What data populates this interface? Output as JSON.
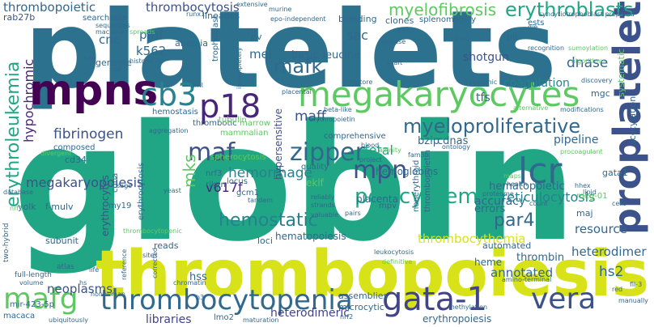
{
  "words": {
    "globin": "globin",
    "platelets": "platelets",
    "thrombopoiesis": "thrombopoiesis",
    "megakaryocytes": "megakaryocytes",
    "proplatelet": "proplatelet",
    "thrombocytopenia": "thrombocytopenia",
    "gata_1": "gata-1",
    "mpns": "mpns",
    "p18": "p18",
    "cb3": "cb3",
    "lcr": "lcr",
    "mafg": "mafg",
    "vera": "vera",
    "myeloproliferative": "myeloproliferative",
    "erythroblasts": "erythroblasts",
    "mafk": "mafk",
    "maf": "maf",
    "erythroleukemia": "erythroleukemia",
    "polycythemia": "polycythemia",
    "zipper": "zipper",
    "mpn": "mpn",
    "hemostatic": "hemostatic",
    "par4": "par4",
    "myelofibrosis": "myelofibrosis",
    "thrombocytosis": "thrombocytosis",
    "thrombopoietic": "thrombopoietic",
    "reticulocytosis": "reticulocytosis",
    "thrombocythemia": "thrombocythemia",
    "hemorrhage": "hemorrhage",
    "hypochromic": "hypochromic",
    "fibrinogen": "fibrinogen",
    "mks": "mks",
    "v617f": "v617f",
    "megakaryopoiesis": "megakaryopoiesis",
    "dnase": "dnase",
    "coagulation": "coagulation",
    "hs2": "hs2",
    "heterodimeric": "heterodimeric",
    "heterodimer": "heterodimer",
    "neoplasms": "neoplasms",
    "libraries": "libraries",
    "hss": "hss",
    "resource": "resource",
    "shotgun": "shotgun",
    "pipeline": "pipeline",
    "fetal": "fetal",
    "accuracy": "accuracy",
    "hematopoietic": "hematopoietic",
    "annotated": "annotated",
    "erythrocytes": "erythrocytes",
    "hemoglobins": "hemoglobins",
    "hematopoiesis": "hematopoiesis",
    "placenta": "placenta",
    "basic_leucine": "basic-leucine",
    "k562": "k562",
    "pmf": "pmf",
    "cnc": "cnc",
    "mel": "mel",
    "sac": "sac",
    "maff": "maff",
    "hypersensitive": "hypersensitive",
    "gata1": "gata1",
    "bzip": "bzip",
    "cdnas": "cdnas",
    "mgc": "mgc",
    "tfs": "tfs",
    "acetylation": "acetylation",
    "systematic": "systematic",
    "errors": "errors",
    "thrombin": "thrombin",
    "heme": "heme",
    "assemblies": "assemblies",
    "microcytic": "microcytic",
    "erythropoiesis": "erythropoiesis",
    "rab27b": "rab27b",
    "searchable": "searchable",
    "genome": "genome",
    "anemia": "anemia",
    "lineages": "lineages",
    "trophoblast": "trophoblast",
    "pv": "pv",
    "bleeding": "bleeding",
    "clones": "clones",
    "splenomegaly": "splenomegaly",
    "ests": "ests",
    "pit": "pit",
    "hemostasis": "hemostasis",
    "thrombotic": "thrombotic",
    "marrow": "marrow",
    "mammalian": "mammalian",
    "tubulin": "tubulin",
    "composed": "composed",
    "cd34": "cd34",
    "spherocytosis": "spherocytosis",
    "quality": "quality",
    "comprehensive": "comprehensive",
    "nrf3": "nrf3",
    "riken": "riken",
    "locus": "locus",
    "gcm1": "gcm1",
    "eklf": "eklf",
    "mpv": "mpv",
    "nonerythroid": "nonerythroid",
    "thrombopoietin": "thrombopoietin",
    "yolk": "yolk",
    "f_mulv": "f-mulv",
    "my19": "my19",
    "cdna": "cdna",
    "erythrocytosis": "erythrocytosis",
    "subunit": "subunit",
    "reads": "reads",
    "loci": "loci",
    "automated": "automated",
    "maj": "maj",
    "meg_01": "meg-01",
    "mir_423_5p": "mir-423-5p",
    "macaca": "macaca",
    "lmo2": "lmo2",
    "two_hybrid": "two-hybrid",
    "full_length": "full-length",
    "atlas": "atlas",
    "sequences": "sequences",
    "macaque": "macaque",
    "cap": "cap",
    "spreads": "spreads",
    "histone": "histone",
    "set": "set",
    "runx1": "runx1",
    "murine": "murine",
    "epo_independent": "epo-independent",
    "extensive": "extensive",
    "syncytiotrophoblast_prepared": "syncytiotrophoblast prepared",
    "die": "die",
    "three_hs1": "3'hs1",
    "release": "release",
    "par2": "par2",
    "recognition": "recognition",
    "sumoylation": "sumoylation",
    "algorithms": "algorithms",
    "discovery": "discovery",
    "draft": "draft",
    "restore": "restore",
    "transgenic": "transgenic",
    "placental": "placental",
    "alternative": "alternative",
    "modifications": "modifications",
    "erythropoietin": "erythropoietin",
    "beta_like": "beta-like",
    "aml": "aml",
    "incompletely": "incompletely",
    "aggregation": "aggregation",
    "divergent": "divergent",
    "blood": "blood",
    "affinity": "affinity",
    "project": "project",
    "ontology": "ontology",
    "procoagulant": "procoagulant",
    "fam3b": "fam3b",
    "database": "database",
    "nrf1": "nrf1",
    "sage": "sage",
    "yeast": "yeast",
    "tandem": "tandem",
    "reliably": "reliably",
    "strands": "strands",
    "maps": "maps",
    "health": "health",
    "proteome": "proteome",
    "count": "count",
    "pairs": "pairs",
    "life": "life",
    "volume": "volume",
    "hs": "hs",
    "sites": "sites",
    "reference": "reference",
    "corrected": "corrected",
    "h3": "h3",
    "chromatin": "chromatin",
    "nonhuman": "nonhuman",
    "ubiquitously": "ubiquitously",
    "maturation": "maturation",
    "nrf2": "nrf2",
    "valuable": "valuable",
    "leukocytosis": "leukocytosis",
    "amino_terminal": "amino-terminal",
    "red": "red",
    "manually": "manually",
    "tll_3": "fll-3",
    "hhex": "hhex",
    "cells": "cells",
    "lipid": "lipid",
    "thrombocytopenic": "thrombocytopenic",
    "definitive": "definitive",
    "methylation": "methylation"
  },
  "palette": {
    "teal": "#21a685",
    "yellow": "#d8e219",
    "darkblue": "#3b528b",
    "purple": "#482677",
    "deeppurple": "#440154",
    "blue": "#2c728e",
    "cyan": "#26828e",
    "green": "#5ec962",
    "lightgreen": "#addc30",
    "navy": "#31688e",
    "indigo": "#414487"
  }
}
